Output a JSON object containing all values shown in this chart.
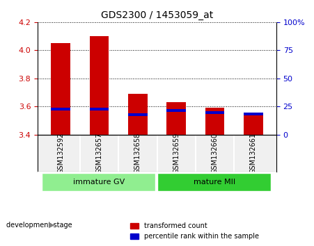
{
  "title": "GDS2300 / 1453059_at",
  "samples": [
    "GSM132592",
    "GSM132657",
    "GSM132658",
    "GSM132659",
    "GSM132660",
    "GSM132661"
  ],
  "red_values": [
    4.05,
    4.1,
    3.69,
    3.63,
    3.59,
    3.54
  ],
  "blue_values": [
    3.57,
    3.57,
    3.53,
    3.56,
    3.545,
    3.535
  ],
  "bar_base": 3.4,
  "ylim": [
    3.4,
    4.2
  ],
  "yticks_left": [
    3.4,
    3.6,
    3.8,
    4.0,
    4.2
  ],
  "yticks_right": [
    0,
    25,
    50,
    75,
    100
  ],
  "right_ylim": [
    0,
    100
  ],
  "groups": [
    {
      "label": "immature GV",
      "start": 0,
      "end": 3,
      "color": "#90EE90"
    },
    {
      "label": "mature MII",
      "start": 3,
      "end": 6,
      "color": "#32CD32"
    }
  ],
  "bar_width": 0.5,
  "red_color": "#CC0000",
  "blue_color": "#0000CC",
  "bg_color": "#F0F0F0",
  "plot_bg": "#FFFFFF",
  "legend_red": "transformed count",
  "legend_blue": "percentile rank within the sample",
  "left_label_color": "#CC0000",
  "right_label_color": "#0000CC",
  "blue_bar_height": 0.02,
  "label_text": "development stage"
}
